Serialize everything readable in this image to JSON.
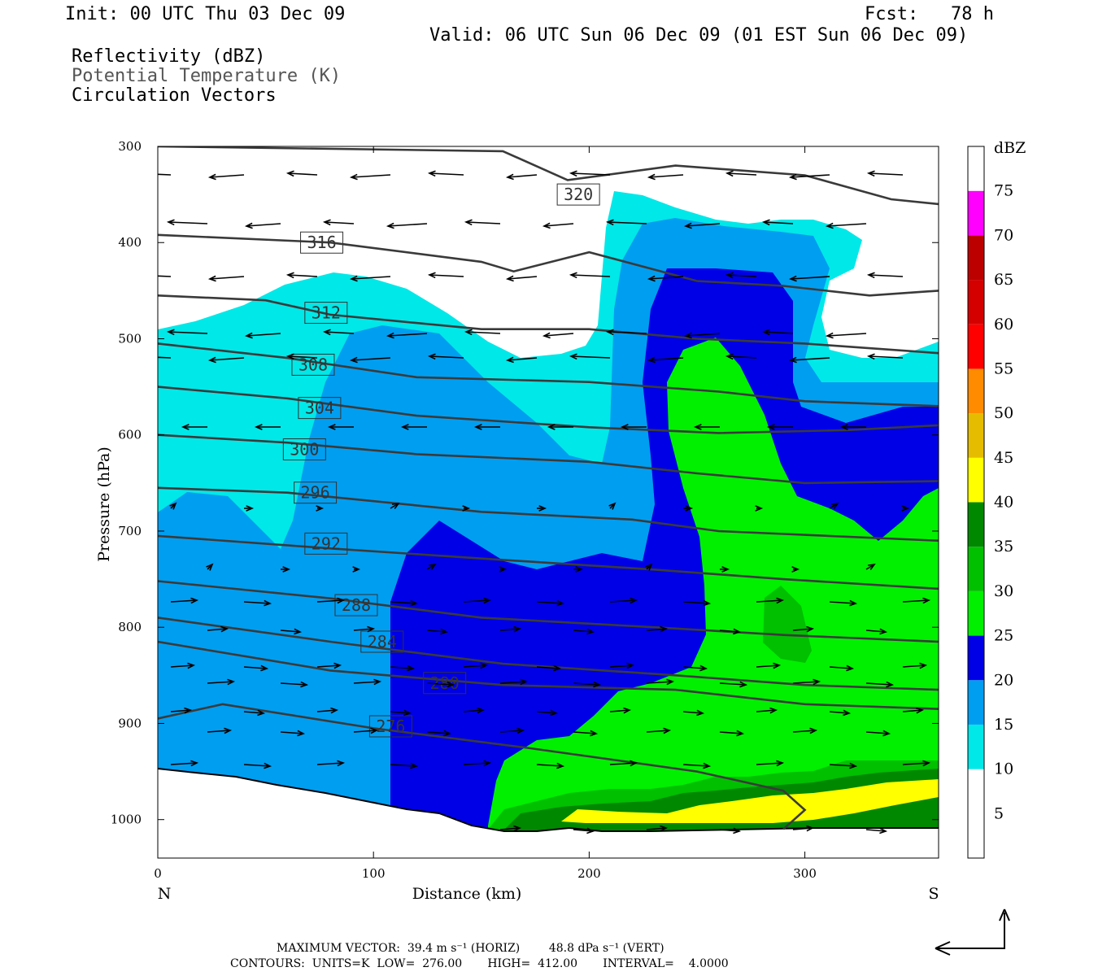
{
  "header": {
    "init": "Init: 00 UTC Thu 03 Dec 09",
    "fcst": "Fcst:   78 h",
    "valid": "Valid: 06 UTC Sun 06 Dec 09 (01 EST Sun 06 Dec 09)",
    "field1": "Reflectivity (dBZ)",
    "field2": "Potential Temperature (K)",
    "field3": "Circulation Vectors"
  },
  "footer": {
    "max_vector": "MAXIMUM VECTOR:  39.4 m s⁻¹ (HORIZ)        48.8 dPa s⁻¹ (VERT)",
    "contours": "CONTOURS:  UNITS=K  LOW=  276.00       HIGH=  412.00       INTERVAL=    4.0000"
  },
  "chart_data": {
    "type": "cross-section",
    "xlabel": "Distance (km)",
    "ylabel": "Pressure (hPa)",
    "xlim": [
      0,
      362
    ],
    "ylim": [
      1040,
      300
    ],
    "x_ticks": [
      "0",
      "100",
      "200",
      "300"
    ],
    "y_ticks": [
      "300",
      "400",
      "500",
      "600",
      "700",
      "800",
      "900",
      "1000"
    ],
    "left_end_label": "N",
    "right_end_label": "S",
    "colorbar": {
      "unit": "dBZ",
      "levels": [
        "5",
        "10",
        "15",
        "20",
        "25",
        "30",
        "35",
        "40",
        "45",
        "50",
        "55",
        "60",
        "65",
        "70",
        "75"
      ],
      "colors": [
        "#ffffff",
        "#00e8e8",
        "#009ef0",
        "#0000e6",
        "#00f000",
        "#00c000",
        "#008800",
        "#ffff00",
        "#e6bc00",
        "#ff8c00",
        "#ff0000",
        "#d40000",
        "#bc0000",
        "#ff00ff",
        "#9450c8"
      ]
    },
    "theta_contours": [
      {
        "label": "320",
        "points": [
          [
            0,
            300
          ],
          [
            160,
            305
          ],
          [
            190,
            335
          ],
          [
            240,
            320
          ],
          [
            300,
            330
          ],
          [
            340,
            355
          ],
          [
            362,
            360
          ]
        ],
        "label_at": [
          195,
          350
        ]
      },
      {
        "label": "316",
        "points": [
          [
            0,
            392
          ],
          [
            80,
            400
          ],
          [
            150,
            420
          ],
          [
            165,
            430
          ],
          [
            200,
            410
          ],
          [
            250,
            440
          ],
          [
            290,
            445
          ],
          [
            330,
            455
          ],
          [
            362,
            450
          ]
        ],
        "label_at": [
          76,
          400
        ]
      },
      {
        "label": "312",
        "points": [
          [
            0,
            455
          ],
          [
            50,
            460
          ],
          [
            80,
            475
          ],
          [
            150,
            490
          ],
          [
            200,
            490
          ],
          [
            250,
            500
          ],
          [
            300,
            505
          ],
          [
            362,
            515
          ]
        ],
        "label_at": [
          78,
          473
        ]
      },
      {
        "label": "308",
        "points": [
          [
            0,
            505
          ],
          [
            60,
            520
          ],
          [
            120,
            540
          ],
          [
            200,
            545
          ],
          [
            260,
            555
          ],
          [
            300,
            565
          ],
          [
            362,
            570
          ]
        ],
        "label_at": [
          72,
          527
        ]
      },
      {
        "label": "304",
        "points": [
          [
            0,
            550
          ],
          [
            60,
            562
          ],
          [
            120,
            580
          ],
          [
            200,
            592
          ],
          [
            260,
            598
          ],
          [
            320,
            595
          ],
          [
            362,
            590
          ]
        ],
        "label_at": [
          75,
          572
        ]
      },
      {
        "label": "300",
        "points": [
          [
            0,
            600
          ],
          [
            60,
            608
          ],
          [
            120,
            620
          ],
          [
            200,
            628
          ],
          [
            250,
            640
          ],
          [
            300,
            650
          ],
          [
            362,
            648
          ]
        ],
        "label_at": [
          68,
          615
        ]
      },
      {
        "label": "296",
        "points": [
          [
            0,
            655
          ],
          [
            60,
            660
          ],
          [
            150,
            680
          ],
          [
            220,
            688
          ],
          [
            260,
            700
          ],
          [
            362,
            710
          ]
        ],
        "label_at": [
          73,
          660
        ]
      },
      {
        "label": "292",
        "points": [
          [
            0,
            705
          ],
          [
            80,
            718
          ],
          [
            160,
            730
          ],
          [
            230,
            740
          ],
          [
            290,
            750
          ],
          [
            362,
            760
          ]
        ],
        "label_at": [
          78,
          713
        ]
      },
      {
        "label": "288",
        "points": [
          [
            0,
            752
          ],
          [
            80,
            770
          ],
          [
            150,
            790
          ],
          [
            230,
            800
          ],
          [
            290,
            808
          ],
          [
            362,
            815
          ]
        ],
        "label_at": [
          92,
          777
        ]
      },
      {
        "label": "284",
        "points": [
          [
            0,
            790
          ],
          [
            80,
            815
          ],
          [
            160,
            838
          ],
          [
            240,
            850
          ],
          [
            300,
            860
          ],
          [
            362,
            865
          ]
        ],
        "label_at": [
          104,
          815
        ]
      },
      {
        "label": "280",
        "points": [
          [
            0,
            815
          ],
          [
            80,
            845
          ],
          [
            160,
            860
          ],
          [
            240,
            865
          ],
          [
            300,
            880
          ],
          [
            362,
            885
          ]
        ],
        "label_at": [
          133,
          858
        ]
      },
      {
        "label": "276",
        "points": [
          [
            0,
            895
          ],
          [
            30,
            880
          ],
          [
            100,
            905
          ],
          [
            170,
            925
          ],
          [
            250,
            950
          ],
          [
            290,
            970
          ],
          [
            300,
            990
          ],
          [
            290,
            1010
          ]
        ],
        "label_at": [
          108,
          903
        ]
      }
    ]
  }
}
